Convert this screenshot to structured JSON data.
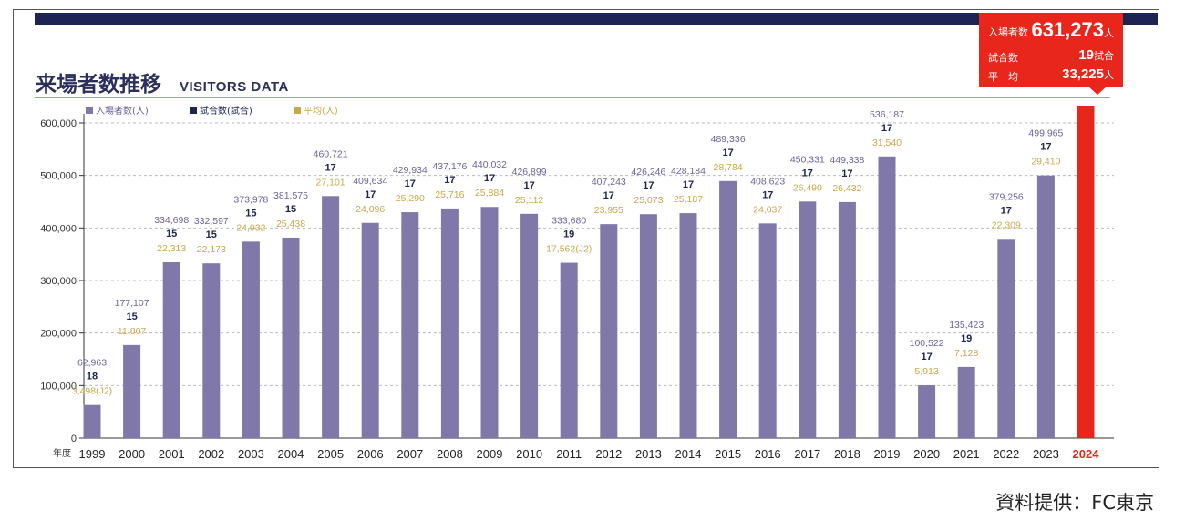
{
  "title": {
    "jp": "来場者数推移",
    "en": "VISITORS DATA"
  },
  "legend": [
    {
      "label": "入場者数(人)",
      "color": "#8078a8"
    },
    {
      "label": "試合数(試合)",
      "color": "#1d2352"
    },
    {
      "label": "平均(人)",
      "color": "#c9a84c"
    }
  ],
  "callout": {
    "rows": [
      {
        "label": "入場者数",
        "value": "631,273",
        "unit": "人"
      },
      {
        "label": "試合数",
        "value": "19",
        "unit": "試合"
      },
      {
        "label": "平　均",
        "value": "33,225",
        "unit": "人"
      }
    ]
  },
  "source": "資料提供：FC東京",
  "colors": {
    "bar": "#8078a8",
    "highlight": "#e8261c",
    "attendance": "#6a6496",
    "games": "#1d2352",
    "average": "#c9a84c",
    "axis": "#333333",
    "grid": "#bbbbbb"
  },
  "chart_data": {
    "type": "bar",
    "xlabel": "年度",
    "ylabel": "",
    "ylim": [
      0,
      600000
    ],
    "yticks": [
      0,
      100000,
      200000,
      300000,
      400000,
      500000,
      600000
    ],
    "ytick_labels": [
      "0",
      "100,000",
      "200,000",
      "300,000",
      "400,000",
      "500,000",
      "600,000"
    ],
    "categories": [
      "1999",
      "2000",
      "2001",
      "2002",
      "2003",
      "2004",
      "2005",
      "2006",
      "2007",
      "2008",
      "2009",
      "2010",
      "2011",
      "2012",
      "2013",
      "2014",
      "2015",
      "2016",
      "2017",
      "2018",
      "2019",
      "2020",
      "2021",
      "2022",
      "2023",
      "2024"
    ],
    "series": [
      {
        "name": "入場者数(人)",
        "values": [
          62963,
          177107,
          334698,
          332597,
          373978,
          381575,
          460721,
          409634,
          429934,
          437176,
          440032,
          426899,
          333680,
          407243,
          426246,
          428184,
          489336,
          408623,
          450331,
          449338,
          536187,
          100522,
          135423,
          379256,
          499965,
          631273
        ]
      },
      {
        "name": "試合数(試合)",
        "values": [
          18,
          15,
          15,
          15,
          15,
          15,
          17,
          17,
          17,
          17,
          17,
          17,
          19,
          17,
          17,
          17,
          17,
          17,
          17,
          17,
          17,
          17,
          19,
          17,
          17,
          19
        ]
      },
      {
        "name": "平均(人)",
        "values": [
          3498,
          11807,
          22313,
          22173,
          24932,
          25438,
          27101,
          24096,
          25290,
          25716,
          25884,
          25112,
          17562,
          23955,
          25073,
          25187,
          28784,
          24037,
          26490,
          26432,
          31540,
          5913,
          7128,
          22309,
          29410,
          33225
        ]
      }
    ],
    "labels": {
      "attendance": [
        "62,963",
        "177,107",
        "334,698",
        "332,597",
        "373,978",
        "381,575",
        "460,721",
        "409,634",
        "429,934",
        "437,176",
        "440,032",
        "426,899",
        "333,680",
        "407,243",
        "426,246",
        "428,184",
        "489,336",
        "408,623",
        "450,331",
        "449,338",
        "536,187",
        "100,522",
        "135,423",
        "379,256",
        "499,965"
      ],
      "games": [
        "18",
        "15",
        "15",
        "15",
        "15",
        "15",
        "17",
        "17",
        "17",
        "17",
        "17",
        "17",
        "19",
        "17",
        "17",
        "17",
        "17",
        "17",
        "17",
        "17",
        "17",
        "17",
        "19",
        "17",
        "17"
      ],
      "average": [
        "3,498(J2)",
        "11,807",
        "22,313",
        "22,173",
        "24,932",
        "25,438",
        "27,101",
        "24,096",
        "25,290",
        "25,716",
        "25,884",
        "25,112",
        "17,562(J2)",
        "23,955",
        "25,073",
        "25,187",
        "28,784",
        "24,037",
        "26,490",
        "26,432",
        "31,540",
        "5,913",
        "7,128",
        "22,309",
        "29,410"
      ]
    },
    "highlight_category": "2024"
  }
}
